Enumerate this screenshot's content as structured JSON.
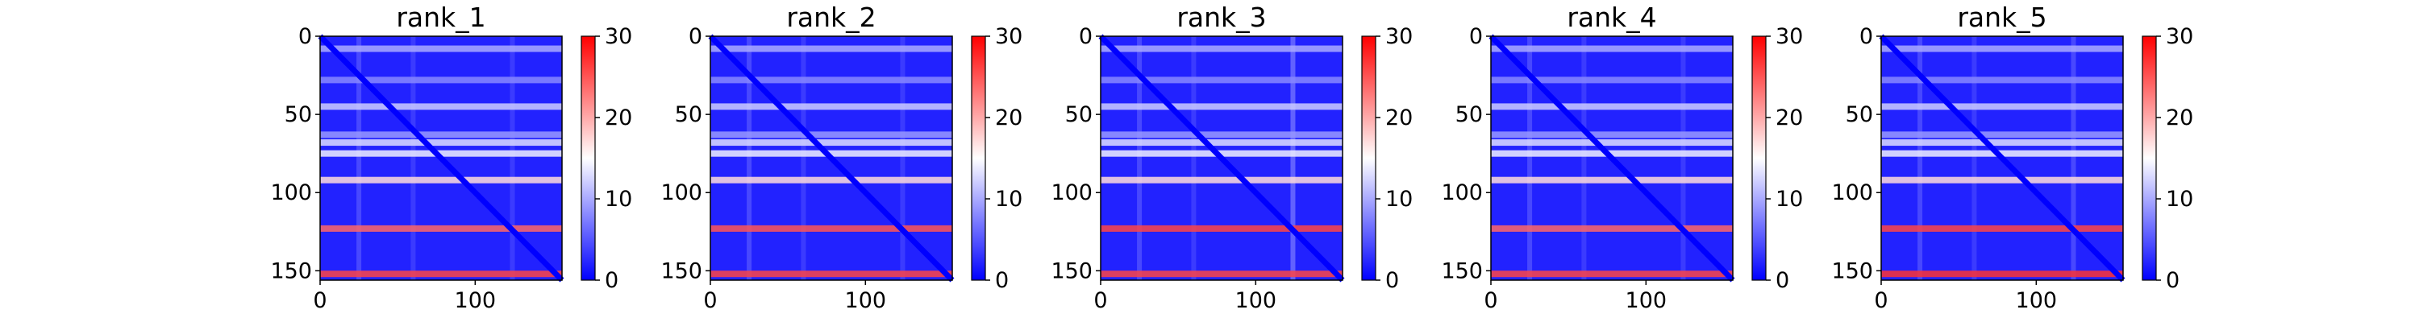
{
  "chart_data": [
    {
      "type": "heatmap",
      "title": "rank_1",
      "xticks": [
        0,
        100
      ],
      "yticks": [
        0,
        50,
        100,
        150
      ],
      "xlim": [
        0,
        156
      ],
      "ylim": [
        156,
        0
      ],
      "n": 156,
      "colorbar": {
        "ticks": [
          0,
          10,
          20,
          30
        ],
        "range": [
          0,
          30
        ],
        "colormap": "bwr"
      },
      "bands": [
        {
          "row": 8,
          "value": 10
        },
        {
          "row": 28,
          "value": 8
        },
        {
          "row": 45,
          "value": 12
        },
        {
          "row": 63,
          "value": 9
        },
        {
          "row": 68,
          "value": 13
        },
        {
          "row": 75,
          "value": 14
        },
        {
          "row": 92,
          "value": 17
        },
        {
          "row": 123,
          "value": 24
        },
        {
          "row": 152,
          "value": 26
        }
      ],
      "cols": [
        {
          "col": 25,
          "value": 5
        },
        {
          "col": 60,
          "value": 4
        },
        {
          "col": 124,
          "value": 4
        }
      ]
    },
    {
      "type": "heatmap",
      "title": "rank_2",
      "xticks": [
        0,
        100
      ],
      "yticks": [
        0,
        50,
        100,
        150
      ],
      "xlim": [
        0,
        156
      ],
      "ylim": [
        156,
        0
      ],
      "n": 156,
      "colorbar": {
        "ticks": [
          0,
          10,
          20,
          30
        ],
        "range": [
          0,
          30
        ],
        "colormap": "bwr"
      },
      "bands": [
        {
          "row": 8,
          "value": 10
        },
        {
          "row": 28,
          "value": 8
        },
        {
          "row": 45,
          "value": 12
        },
        {
          "row": 63,
          "value": 9
        },
        {
          "row": 68,
          "value": 13
        },
        {
          "row": 75,
          "value": 14
        },
        {
          "row": 92,
          "value": 17
        },
        {
          "row": 123,
          "value": 25
        },
        {
          "row": 152,
          "value": 26
        }
      ],
      "cols": [
        {
          "col": 25,
          "value": 5
        },
        {
          "col": 60,
          "value": 4
        },
        {
          "col": 124,
          "value": 4
        }
      ]
    },
    {
      "type": "heatmap",
      "title": "rank_3",
      "xticks": [
        0,
        100
      ],
      "yticks": [
        0,
        50,
        100,
        150
      ],
      "xlim": [
        0,
        156
      ],
      "ylim": [
        156,
        0
      ],
      "n": 156,
      "colorbar": {
        "ticks": [
          0,
          10,
          20,
          30
        ],
        "range": [
          0,
          30
        ],
        "colormap": "bwr"
      },
      "bands": [
        {
          "row": 8,
          "value": 10
        },
        {
          "row": 28,
          "value": 8
        },
        {
          "row": 45,
          "value": 12
        },
        {
          "row": 63,
          "value": 9
        },
        {
          "row": 68,
          "value": 13
        },
        {
          "row": 75,
          "value": 14
        },
        {
          "row": 92,
          "value": 17
        },
        {
          "row": 123,
          "value": 26
        },
        {
          "row": 152,
          "value": 26
        }
      ],
      "cols": [
        {
          "col": 25,
          "value": 5
        },
        {
          "col": 60,
          "value": 4
        },
        {
          "col": 124,
          "value": 7
        }
      ]
    },
    {
      "type": "heatmap",
      "title": "rank_4",
      "xticks": [
        0,
        100
      ],
      "yticks": [
        0,
        50,
        100,
        150
      ],
      "xlim": [
        0,
        156
      ],
      "ylim": [
        156,
        0
      ],
      "n": 156,
      "colorbar": {
        "ticks": [
          0,
          10,
          20,
          30
        ],
        "range": [
          0,
          30
        ],
        "colormap": "bwr"
      },
      "bands": [
        {
          "row": 8,
          "value": 10
        },
        {
          "row": 28,
          "value": 8
        },
        {
          "row": 45,
          "value": 12
        },
        {
          "row": 63,
          "value": 9
        },
        {
          "row": 68,
          "value": 13
        },
        {
          "row": 75,
          "value": 14
        },
        {
          "row": 92,
          "value": 17
        },
        {
          "row": 123,
          "value": 24
        },
        {
          "row": 152,
          "value": 26
        }
      ],
      "cols": [
        {
          "col": 25,
          "value": 5
        },
        {
          "col": 60,
          "value": 4
        },
        {
          "col": 124,
          "value": 4
        }
      ]
    },
    {
      "type": "heatmap",
      "title": "rank_5",
      "xticks": [
        0,
        100
      ],
      "yticks": [
        0,
        50,
        100,
        150
      ],
      "xlim": [
        0,
        156
      ],
      "ylim": [
        156,
        0
      ],
      "n": 156,
      "colorbar": {
        "ticks": [
          0,
          10,
          20,
          30
        ],
        "range": [
          0,
          30
        ],
        "colormap": "bwr"
      },
      "bands": [
        {
          "row": 8,
          "value": 10
        },
        {
          "row": 28,
          "value": 8
        },
        {
          "row": 45,
          "value": 12
        },
        {
          "row": 63,
          "value": 9
        },
        {
          "row": 68,
          "value": 13
        },
        {
          "row": 75,
          "value": 14
        },
        {
          "row": 92,
          "value": 17
        },
        {
          "row": 123,
          "value": 26
        },
        {
          "row": 152,
          "value": 27
        }
      ],
      "cols": [
        {
          "col": 25,
          "value": 5
        },
        {
          "col": 60,
          "value": 4
        },
        {
          "col": 124,
          "value": 5
        }
      ]
    }
  ]
}
